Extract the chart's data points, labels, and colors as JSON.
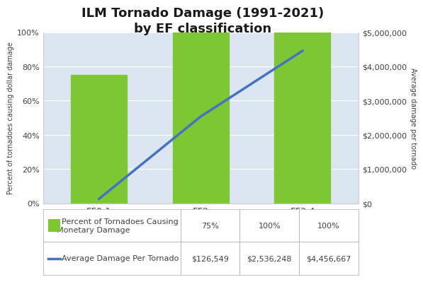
{
  "title": "ILM Tornado Damage (1991-2021)\nby EF classification",
  "categories": [
    "EF0-1",
    "EF2",
    "EF3-4"
  ],
  "bar_values": [
    75,
    100,
    100
  ],
  "line_values": [
    126549,
    2536248,
    4456667
  ],
  "bar_color": "#7dc832",
  "line_color": "#4472c4",
  "left_ylabel": "Percent of tornadoes causing dollar damage",
  "right_ylabel": "Average damage per tornado",
  "ylim_left": [
    0,
    100
  ],
  "ylim_right": [
    0,
    5000000
  ],
  "yticks_left": [
    0,
    20,
    40,
    60,
    80,
    100
  ],
  "yticks_right": [
    0,
    1000000,
    2000000,
    3000000,
    4000000,
    5000000
  ],
  "plot_bg_color": "#dce6f1",
  "fig_bg_color": "#ffffff",
  "title_fontsize": 13,
  "legend_label_bar": "Percent of Tornadoes Causing\nMonetary Damage",
  "legend_label_line": "Average Damage Per Tornado",
  "legend_bar_values": [
    "75%",
    "100%",
    "100%"
  ],
  "legend_line_values": [
    "$126,549",
    "$2,536,248",
    "$4,456,667"
  ],
  "text_color": "#404040"
}
